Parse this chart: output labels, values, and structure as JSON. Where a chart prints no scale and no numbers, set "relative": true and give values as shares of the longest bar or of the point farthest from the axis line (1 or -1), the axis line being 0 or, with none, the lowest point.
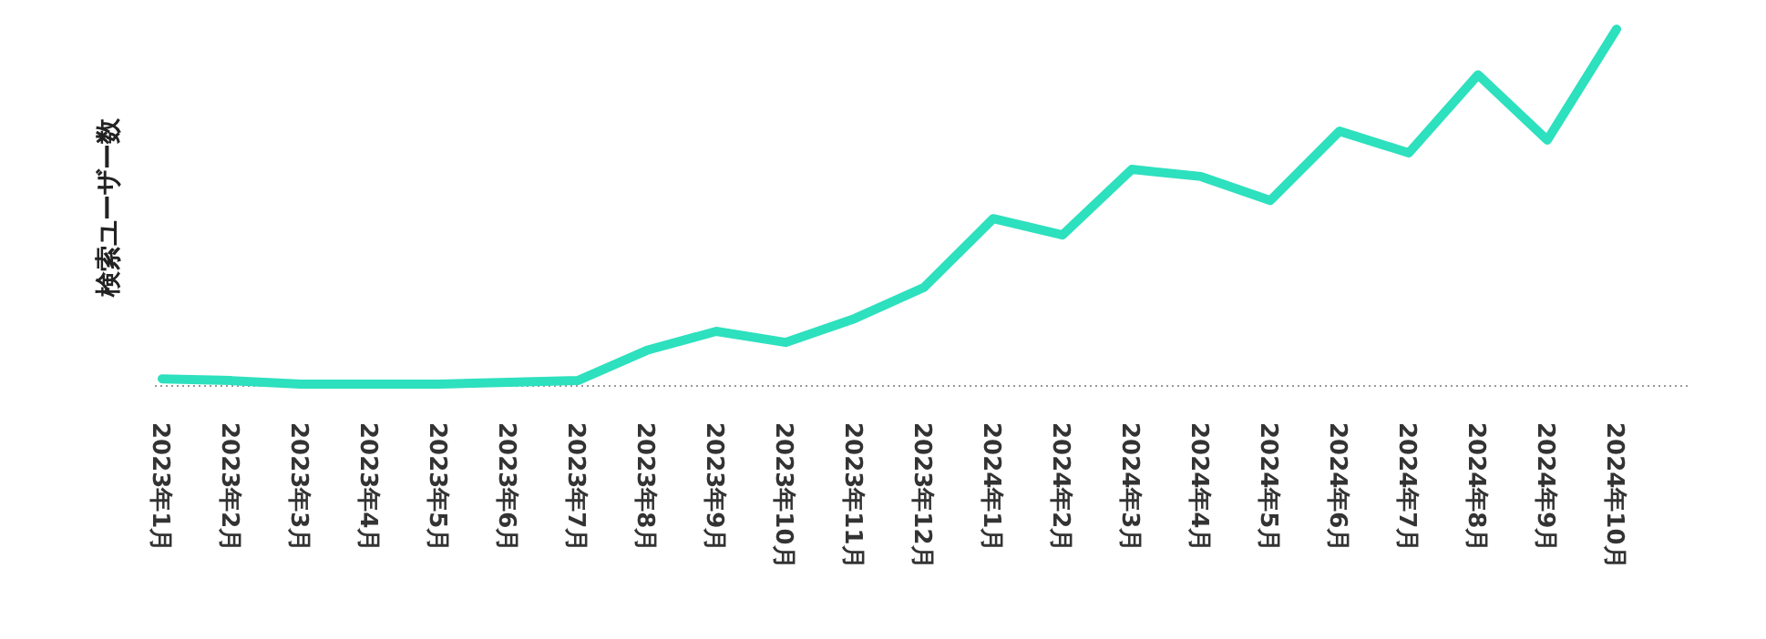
{
  "chart_data": {
    "type": "line",
    "ylabel": "検索ユーザー数",
    "categories": [
      "2023年1月",
      "2023年2月",
      "2023年3月",
      "2023年4月",
      "2023年5月",
      "2023年6月",
      "2023年7月",
      "2023年8月",
      "2023年9月",
      "2023年10月",
      "2023年11月",
      "2023年12月",
      "2024年1月",
      "2024年2月",
      "2024年3月",
      "2024年4月",
      "2024年5月",
      "2024年6月",
      "2024年7月",
      "2024年8月",
      "2024年9月",
      "2024年10月"
    ],
    "values": [
      0.02,
      0.015,
      0.005,
      0.005,
      0.005,
      0.01,
      0.015,
      0.1,
      0.153,
      0.122,
      0.189,
      0.276,
      0.469,
      0.423,
      0.607,
      0.587,
      0.52,
      0.714,
      0.653,
      0.872,
      0.689,
      1
    ],
    "color": "#2de0be",
    "relative": true
  }
}
